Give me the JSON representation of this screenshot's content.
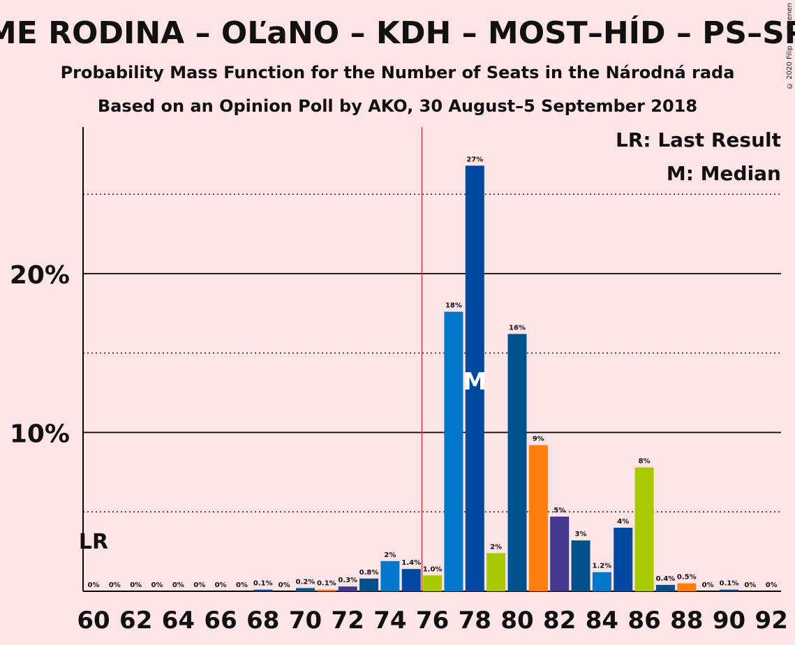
{
  "title": "ME RODINA – OĽaNO – KDH – MOST–HÍD – PS–SPOL",
  "subtitle1": "Probability Mass Function for the Number of Seats in the Národná rada",
  "subtitle2": "Based on an Opinion Poll by AKO, 30 August–5 September 2018",
  "copyright": "© 2020 Filip van Laenen",
  "legend": {
    "lr": "LR: Last Result",
    "median": "M: Median"
  },
  "chart_data": {
    "type": "bar",
    "x": [
      60,
      61,
      62,
      63,
      64,
      65,
      66,
      67,
      68,
      69,
      70,
      71,
      72,
      73,
      74,
      75,
      76,
      77,
      78,
      79,
      80,
      81,
      82,
      83,
      84,
      85,
      86,
      87,
      88,
      89,
      90,
      91,
      92
    ],
    "values": [
      0,
      0,
      0,
      0,
      0,
      0,
      0,
      0,
      0.1,
      0,
      0.2,
      0.1,
      0.3,
      0.8,
      1.9,
      1.4,
      1.0,
      17.6,
      26.8,
      2.4,
      16.2,
      9.2,
      4.7,
      3.2,
      1.2,
      4.0,
      7.8,
      0.4,
      0.5,
      0,
      0.1,
      0,
      0
    ],
    "labels": [
      "0%",
      "0%",
      "0%",
      "0%",
      "0%",
      "0%",
      "0%",
      "0%",
      "0.1%",
      "0%",
      "0.2%",
      "0.1%",
      "0.3%",
      "0.8%",
      "2%",
      "1.4%",
      "1.0%",
      "18%",
      "27%",
      "2%",
      "16%",
      "9%",
      "5%",
      "3%",
      "1.2%",
      "4%",
      "8%",
      "0.4%",
      "0.5%",
      "0%",
      "0.1%",
      "0%",
      "0%"
    ],
    "colors": [
      "#1f77b4",
      "#003f7f",
      "#a0c020",
      "#00508c",
      "#ff7f0e",
      "#45368f",
      "#005e93",
      "#0077c8",
      "#00479e",
      "#a8c800",
      "#005a8c",
      "#ff7f0e",
      "#45368f",
      "#00508c",
      "#0077c8",
      "#00479e",
      "#a8c800",
      "#0077c8",
      "#00479e",
      "#a8c800",
      "#00508c",
      "#ff7f0e",
      "#45368f",
      "#00508c",
      "#0077c8",
      "#00479e",
      "#a8c800",
      "#00508c",
      "#ff7f0e",
      "#45368f",
      "#00508c",
      "#0077c8",
      "#00479e"
    ],
    "x_ticks": [
      "60",
      "62",
      "64",
      "66",
      "68",
      "70",
      "72",
      "74",
      "76",
      "78",
      "80",
      "82",
      "84",
      "86",
      "88",
      "90",
      "92"
    ],
    "y_ticks": [
      "10%",
      "20%"
    ],
    "ylim": [
      0,
      29
    ],
    "last_result_seat": 60,
    "last_result_label": "LR",
    "median_seat": 78,
    "median_label": "M",
    "majority_line_seat": 75.5,
    "grid": true
  }
}
